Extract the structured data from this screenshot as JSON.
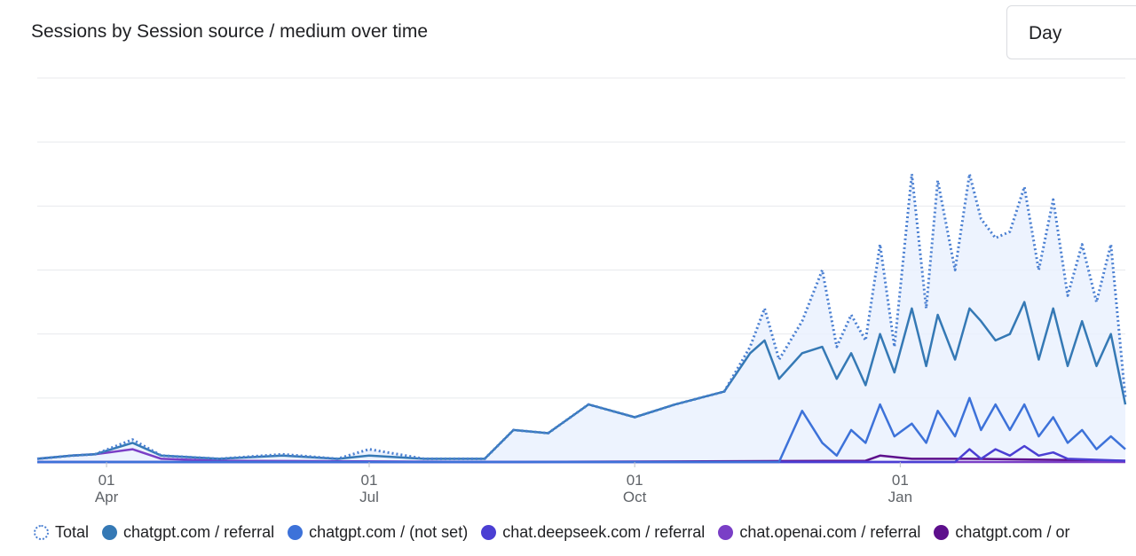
{
  "card": {
    "title": "Sessions by Session source / medium over time",
    "granularity": "Day"
  },
  "legend": [
    {
      "label": "Total",
      "color": "#4a7fd1",
      "style": "dotted"
    },
    {
      "label": "chatgpt.com / referral",
      "color": "#3579b5",
      "style": "solid"
    },
    {
      "label": "chatgpt.com / (not set)",
      "color": "#3d72d9",
      "style": "solid"
    },
    {
      "label": "chat.deepseek.com / referral",
      "color": "#4b3fd3",
      "style": "solid"
    },
    {
      "label": "chat.openai.com / referral",
      "color": "#7a3fc6",
      "style": "solid"
    },
    {
      "label": "chatgpt.com / or",
      "color": "#5d0f8c",
      "style": "solid"
    }
  ],
  "chart_data": {
    "type": "line",
    "title": "Sessions by Session source / medium over time",
    "x_ticks": [
      {
        "day": "01",
        "month": "Apr",
        "date": "2024-04-01"
      },
      {
        "day": "01",
        "month": "Jul",
        "date": "2024-07-01"
      },
      {
        "day": "01",
        "month": "Oct",
        "date": "2024-10-01"
      },
      {
        "day": "01",
        "month": "Jan",
        "date": "2025-01-01"
      }
    ],
    "x_range": [
      "2024-03-08",
      "2025-03-20"
    ],
    "y_range": [
      0,
      6
    ],
    "y_gridlines": [
      0,
      1,
      2,
      3,
      4,
      5,
      6
    ],
    "y_tick_labels_visible": false,
    "series": [
      {
        "name": "Total",
        "style": "dotted",
        "color": "#4a7fd1",
        "points": [
          [
            "2024-03-08",
            0.05
          ],
          [
            "2024-03-20",
            0.1
          ],
          [
            "2024-03-28",
            0.12
          ],
          [
            "2024-04-10",
            0.35
          ],
          [
            "2024-04-20",
            0.1
          ],
          [
            "2024-05-10",
            0.05
          ],
          [
            "2024-06-01",
            0.12
          ],
          [
            "2024-06-20",
            0.05
          ],
          [
            "2024-07-01",
            0.2
          ],
          [
            "2024-07-20",
            0.05
          ],
          [
            "2024-08-10",
            0.05
          ],
          [
            "2024-08-20",
            0.5
          ],
          [
            "2024-09-01",
            0.45
          ],
          [
            "2024-09-15",
            0.9
          ],
          [
            "2024-10-01",
            0.7
          ],
          [
            "2024-10-15",
            0.9
          ],
          [
            "2024-11-01",
            1.1
          ],
          [
            "2024-11-10",
            1.8
          ],
          [
            "2024-11-15",
            2.4
          ],
          [
            "2024-11-20",
            1.6
          ],
          [
            "2024-11-28",
            2.2
          ],
          [
            "2024-12-05",
            3.0
          ],
          [
            "2024-12-10",
            1.8
          ],
          [
            "2024-12-15",
            2.3
          ],
          [
            "2024-12-20",
            1.9
          ],
          [
            "2024-12-25",
            3.4
          ],
          [
            "2024-12-30",
            1.8
          ],
          [
            "2025-01-05",
            4.5
          ],
          [
            "2025-01-10",
            2.4
          ],
          [
            "2025-01-14",
            4.4
          ],
          [
            "2025-01-20",
            3.0
          ],
          [
            "2025-01-25",
            4.5
          ],
          [
            "2025-01-29",
            3.8
          ],
          [
            "2025-02-03",
            3.5
          ],
          [
            "2025-02-08",
            3.6
          ],
          [
            "2025-02-13",
            4.3
          ],
          [
            "2025-02-18",
            3.0
          ],
          [
            "2025-02-23",
            4.1
          ],
          [
            "2025-02-28",
            2.6
          ],
          [
            "2025-03-05",
            3.4
          ],
          [
            "2025-03-10",
            2.5
          ],
          [
            "2025-03-15",
            3.4
          ],
          [
            "2025-03-20",
            1.0
          ]
        ]
      },
      {
        "name": "chatgpt.com / referral",
        "style": "solid",
        "color": "#3579b5",
        "points": [
          [
            "2024-03-08",
            0.05
          ],
          [
            "2024-03-20",
            0.1
          ],
          [
            "2024-03-28",
            0.12
          ],
          [
            "2024-04-10",
            0.3
          ],
          [
            "2024-04-20",
            0.1
          ],
          [
            "2024-05-10",
            0.05
          ],
          [
            "2024-06-01",
            0.1
          ],
          [
            "2024-06-20",
            0.05
          ],
          [
            "2024-07-01",
            0.1
          ],
          [
            "2024-07-20",
            0.05
          ],
          [
            "2024-08-10",
            0.05
          ],
          [
            "2024-08-20",
            0.5
          ],
          [
            "2024-09-01",
            0.45
          ],
          [
            "2024-09-15",
            0.9
          ],
          [
            "2024-10-01",
            0.7
          ],
          [
            "2024-10-15",
            0.9
          ],
          [
            "2024-11-01",
            1.1
          ],
          [
            "2024-11-10",
            1.7
          ],
          [
            "2024-11-15",
            1.9
          ],
          [
            "2024-11-20",
            1.3
          ],
          [
            "2024-11-28",
            1.7
          ],
          [
            "2024-12-05",
            1.8
          ],
          [
            "2024-12-10",
            1.3
          ],
          [
            "2024-12-15",
            1.7
          ],
          [
            "2024-12-20",
            1.2
          ],
          [
            "2024-12-25",
            2.0
          ],
          [
            "2024-12-30",
            1.4
          ],
          [
            "2025-01-05",
            2.4
          ],
          [
            "2025-01-10",
            1.5
          ],
          [
            "2025-01-14",
            2.3
          ],
          [
            "2025-01-20",
            1.6
          ],
          [
            "2025-01-25",
            2.4
          ],
          [
            "2025-01-29",
            2.2
          ],
          [
            "2025-02-03",
            1.9
          ],
          [
            "2025-02-08",
            2.0
          ],
          [
            "2025-02-13",
            2.5
          ],
          [
            "2025-02-18",
            1.6
          ],
          [
            "2025-02-23",
            2.4
          ],
          [
            "2025-02-28",
            1.5
          ],
          [
            "2025-03-05",
            2.2
          ],
          [
            "2025-03-10",
            1.5
          ],
          [
            "2025-03-15",
            2.0
          ],
          [
            "2025-03-20",
            0.9
          ]
        ]
      },
      {
        "name": "chatgpt.com / (not set)",
        "style": "solid",
        "color": "#3d72d9",
        "points": [
          [
            "2024-03-08",
            0.0
          ],
          [
            "2024-11-20",
            0.0
          ],
          [
            "2024-11-28",
            0.8
          ],
          [
            "2024-12-05",
            0.3
          ],
          [
            "2024-12-10",
            0.1
          ],
          [
            "2024-12-15",
            0.5
          ],
          [
            "2024-12-20",
            0.3
          ],
          [
            "2024-12-25",
            0.9
          ],
          [
            "2024-12-30",
            0.4
          ],
          [
            "2025-01-05",
            0.6
          ],
          [
            "2025-01-10",
            0.3
          ],
          [
            "2025-01-14",
            0.8
          ],
          [
            "2025-01-20",
            0.4
          ],
          [
            "2025-01-25",
            1.0
          ],
          [
            "2025-01-29",
            0.5
          ],
          [
            "2025-02-03",
            0.9
          ],
          [
            "2025-02-08",
            0.5
          ],
          [
            "2025-02-13",
            0.9
          ],
          [
            "2025-02-18",
            0.4
          ],
          [
            "2025-02-23",
            0.7
          ],
          [
            "2025-02-28",
            0.3
          ],
          [
            "2025-03-05",
            0.5
          ],
          [
            "2025-03-10",
            0.2
          ],
          [
            "2025-03-15",
            0.4
          ],
          [
            "2025-03-20",
            0.2
          ]
        ]
      },
      {
        "name": "chat.deepseek.com / referral",
        "style": "solid",
        "color": "#4b3fd3",
        "points": [
          [
            "2024-03-08",
            0.0
          ],
          [
            "2025-01-20",
            0.0
          ],
          [
            "2025-01-25",
            0.2
          ],
          [
            "2025-01-29",
            0.05
          ],
          [
            "2025-02-03",
            0.2
          ],
          [
            "2025-02-08",
            0.1
          ],
          [
            "2025-02-13",
            0.25
          ],
          [
            "2025-02-18",
            0.1
          ],
          [
            "2025-02-23",
            0.15
          ],
          [
            "2025-02-28",
            0.05
          ],
          [
            "2025-03-20",
            0.02
          ]
        ]
      },
      {
        "name": "chat.openai.com / referral",
        "style": "solid",
        "color": "#7a3fc6",
        "points": [
          [
            "2024-03-08",
            0.05
          ],
          [
            "2024-03-20",
            0.1
          ],
          [
            "2024-03-28",
            0.12
          ],
          [
            "2024-04-10",
            0.2
          ],
          [
            "2024-04-20",
            0.05
          ],
          [
            "2024-05-10",
            0.02
          ],
          [
            "2024-08-20",
            0.0
          ],
          [
            "2025-03-20",
            0.0
          ]
        ]
      },
      {
        "name": "chatgpt.com / or",
        "style": "solid",
        "color": "#5d0f8c",
        "points": [
          [
            "2024-03-08",
            0.0
          ],
          [
            "2024-08-20",
            0.0
          ],
          [
            "2024-12-20",
            0.02
          ],
          [
            "2024-12-25",
            0.1
          ],
          [
            "2025-01-05",
            0.05
          ],
          [
            "2025-01-25",
            0.05
          ],
          [
            "2025-03-20",
            0.02
          ]
        ]
      }
    ]
  }
}
